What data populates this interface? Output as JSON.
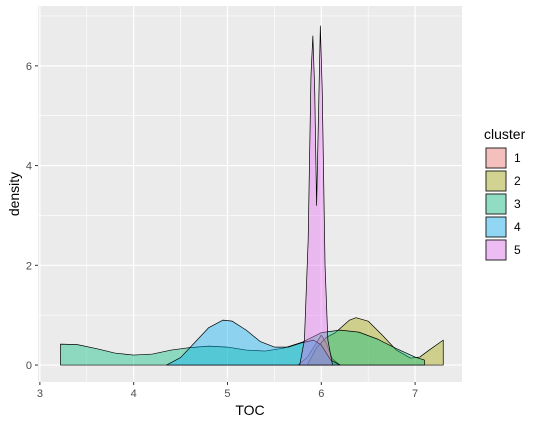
{
  "chart_data": {
    "type": "area",
    "subtype": "density",
    "xlabel": "TOC",
    "ylabel": "density",
    "xlim": [
      2.98,
      7.5
    ],
    "ylim": [
      -0.34,
      7.2
    ],
    "x_ticks": [
      3,
      4,
      5,
      6,
      7
    ],
    "y_ticks": [
      0,
      2,
      4,
      6
    ],
    "grid": true,
    "legend": {
      "title": "cluster",
      "position": "right"
    },
    "series": [
      {
        "name": "1",
        "color": "#F8766D",
        "points": [
          [
            5.75,
            0
          ],
          [
            5.85,
            0.15
          ],
          [
            5.95,
            0.45
          ],
          [
            6.0,
            0.6
          ],
          [
            6.05,
            0.45
          ],
          [
            6.12,
            0.12
          ],
          [
            6.2,
            0
          ]
        ]
      },
      {
        "name": "2",
        "color": "#A3A500",
        "points": [
          [
            5.85,
            0
          ],
          [
            5.95,
            0.35
          ],
          [
            6.05,
            0.55
          ],
          [
            6.15,
            0.65
          ],
          [
            6.3,
            0.9
          ],
          [
            6.37,
            0.95
          ],
          [
            6.5,
            0.88
          ],
          [
            6.65,
            0.6
          ],
          [
            6.8,
            0.3
          ],
          [
            6.95,
            0.14
          ],
          [
            7.05,
            0.16
          ],
          [
            7.15,
            0.3
          ],
          [
            7.3,
            0.5
          ]
        ]
      },
      {
        "name": "3",
        "color": "#00BF7D",
        "points": [
          [
            3.22,
            0.42
          ],
          [
            3.4,
            0.41
          ],
          [
            3.6,
            0.33
          ],
          [
            3.8,
            0.24
          ],
          [
            4.0,
            0.2
          ],
          [
            4.2,
            0.22
          ],
          [
            4.4,
            0.3
          ],
          [
            4.6,
            0.35
          ],
          [
            4.8,
            0.38
          ],
          [
            5.0,
            0.36
          ],
          [
            5.2,
            0.3
          ],
          [
            5.4,
            0.28
          ],
          [
            5.6,
            0.34
          ],
          [
            5.8,
            0.46
          ],
          [
            6.0,
            0.65
          ],
          [
            6.2,
            0.7
          ],
          [
            6.4,
            0.66
          ],
          [
            6.6,
            0.52
          ],
          [
            6.8,
            0.33
          ],
          [
            7.0,
            0.16
          ],
          [
            7.1,
            0.1
          ]
        ]
      },
      {
        "name": "4",
        "color": "#00B0F6",
        "points": [
          [
            4.35,
            0
          ],
          [
            4.5,
            0.15
          ],
          [
            4.65,
            0.45
          ],
          [
            4.8,
            0.75
          ],
          [
            4.95,
            0.9
          ],
          [
            5.05,
            0.88
          ],
          [
            5.2,
            0.7
          ],
          [
            5.35,
            0.47
          ],
          [
            5.5,
            0.36
          ],
          [
            5.65,
            0.36
          ],
          [
            5.8,
            0.45
          ],
          [
            5.92,
            0.5
          ],
          [
            6.0,
            0.4
          ],
          [
            6.1,
            0.1
          ],
          [
            6.2,
            0
          ]
        ]
      },
      {
        "name": "5",
        "color": "#E76BF3",
        "points": [
          [
            5.77,
            0
          ],
          [
            5.82,
            0.5
          ],
          [
            5.86,
            2.5
          ],
          [
            5.89,
            5.8
          ],
          [
            5.91,
            6.6
          ],
          [
            5.93,
            5.5
          ],
          [
            5.95,
            3.2
          ],
          [
            5.97,
            5.0
          ],
          [
            5.99,
            6.8
          ],
          [
            6.01,
            5.5
          ],
          [
            6.04,
            2.0
          ],
          [
            6.07,
            0.5
          ],
          [
            6.12,
            0
          ]
        ]
      }
    ]
  }
}
